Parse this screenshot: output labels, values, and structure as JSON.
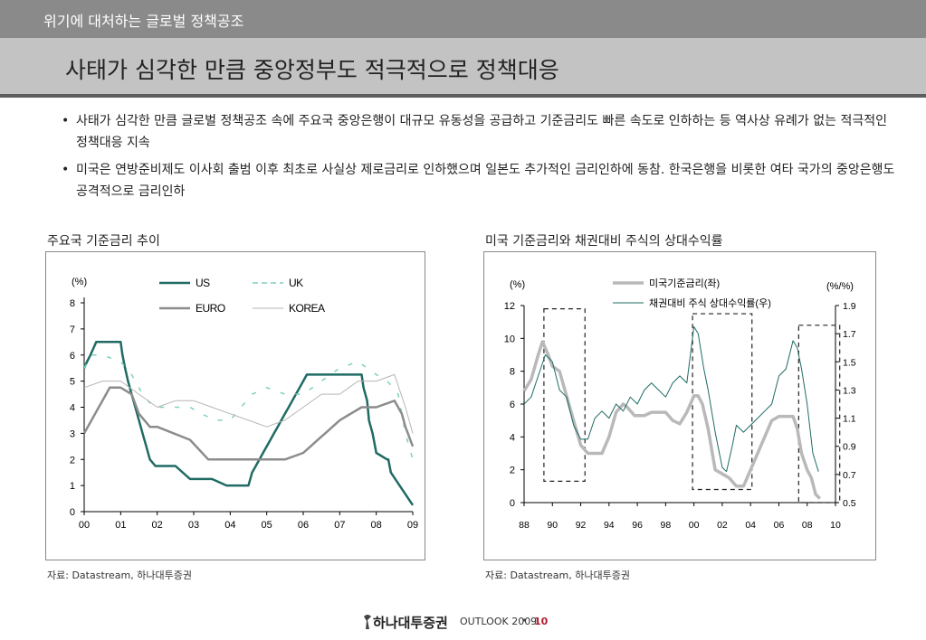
{
  "header": {
    "section_title": "위기에 대처하는 글로벌 정책공조",
    "page_title": "사태가 심각한 만큼 중앙정부도 적극적으로 정책대응"
  },
  "bullets": [
    "사태가 심각한 만큼 글로벌 정책공조 속에 주요국 중앙은행이 대규모 유동성을 공급하고 기준금리도 빠른 속도로 인하하는 등 역사상 유례가 없는 적극적인 정책대응 지속",
    "미국은 연방준비제도 이사회 출범 이후 최초로 사실상 제로금리로 인하했으며 일본도 추가적인 금리인하에 동참. 한국은행을 비롯한 여타 국가의 중앙은행도 공격적으로 금리인하"
  ],
  "bullet_marker": "•",
  "sources": {
    "left": "자료: Datastream, 하나대투증권",
    "right": "자료: Datastream, 하나대투증권"
  },
  "footer": {
    "brand": "하나대투증권",
    "outlook": "OUTLOOK 2009",
    "separator": "•",
    "page_number": "10"
  },
  "chart_data": [
    {
      "type": "line",
      "title": "주요국 기준금리 추이",
      "ylabel": "(%)",
      "ylim": [
        0,
        8
      ],
      "yticks": [
        "0",
        "1",
        "2",
        "3",
        "4",
        "5",
        "6",
        "7",
        "8"
      ],
      "xlim": [
        0,
        9
      ],
      "xticks": [
        "00",
        "01",
        "02",
        "03",
        "04",
        "05",
        "06",
        "07",
        "08",
        "09"
      ],
      "legend_position": "top",
      "series": [
        {
          "name": "US",
          "color": "#1f6b63",
          "style": "solid",
          "width": 2.5,
          "x": [
            0,
            0.08,
            0.17,
            0.33,
            0.5,
            1.0,
            1.05,
            1.12,
            1.2,
            1.3,
            1.4,
            1.5,
            1.6,
            1.7,
            1.8,
            1.95,
            2.5,
            2.9,
            3.5,
            3.9,
            4.5,
            4.55,
            4.6,
            4.7,
            4.8,
            4.9,
            5.0,
            5.1,
            5.2,
            5.3,
            5.4,
            5.5,
            5.6,
            5.7,
            5.8,
            5.9,
            6.0,
            6.1,
            6.2,
            6.3,
            6.4,
            6.5,
            7.6,
            7.65,
            7.7,
            7.75,
            7.8,
            7.9,
            8.0,
            8.3,
            8.33,
            8.4,
            9.0
          ],
          "y": [
            5.5,
            5.75,
            6.0,
            6.5,
            6.5,
            6.5,
            6.0,
            5.5,
            5.0,
            4.5,
            4.0,
            3.5,
            3.0,
            2.5,
            2.0,
            1.75,
            1.75,
            1.25,
            1.25,
            1.0,
            1.0,
            1.25,
            1.5,
            1.75,
            2.0,
            2.25,
            2.5,
            2.75,
            3.0,
            3.25,
            3.5,
            3.75,
            4.0,
            4.25,
            4.5,
            4.75,
            5.0,
            5.25,
            5.25,
            5.25,
            5.25,
            5.25,
            5.25,
            4.75,
            4.5,
            4.25,
            3.5,
            3.0,
            2.25,
            2.0,
            2.0,
            1.5,
            0.25
          ]
        },
        {
          "name": "UK",
          "color": "#7fcfc0",
          "style": "dashed",
          "width": 1.5,
          "x": [
            0,
            0.2,
            0.5,
            1.0,
            1.3,
            1.6,
            1.9,
            2.5,
            2.9,
            3.2,
            3.6,
            4.0,
            4.3,
            4.6,
            5.0,
            5.5,
            6.0,
            6.5,
            7.0,
            7.5,
            8.0,
            8.3,
            8.6,
            8.8,
            9.0
          ],
          "y": [
            5.5,
            6.0,
            6.0,
            5.75,
            5.25,
            4.5,
            4.0,
            4.0,
            4.0,
            3.75,
            3.5,
            3.5,
            4.0,
            4.5,
            4.75,
            4.5,
            4.5,
            5.0,
            5.5,
            5.75,
            5.25,
            5.0,
            4.5,
            3.0,
            2.0
          ]
        },
        {
          "name": "EURO",
          "color": "#8c8c8c",
          "style": "solid",
          "width": 2.5,
          "x": [
            0,
            0.1,
            0.2,
            0.3,
            0.4,
            0.5,
            0.6,
            0.7,
            0.8,
            1.0,
            1.3,
            1.5,
            1.8,
            2.0,
            2.9,
            3.4,
            5.5,
            6.0,
            6.2,
            6.4,
            6.6,
            6.8,
            7.0,
            7.3,
            7.6,
            7.8,
            8.0,
            8.5,
            8.7,
            8.8,
            9.0
          ],
          "y": [
            3.0,
            3.25,
            3.5,
            3.75,
            4.0,
            4.25,
            4.5,
            4.75,
            4.75,
            4.75,
            4.5,
            3.75,
            3.25,
            3.25,
            2.75,
            2.0,
            2.0,
            2.25,
            2.5,
            2.75,
            3.0,
            3.25,
            3.5,
            3.75,
            4.0,
            4.0,
            4.0,
            4.25,
            3.75,
            3.25,
            2.5
          ]
        },
        {
          "name": "KOREA",
          "color": "#b5b5b5",
          "style": "solid",
          "width": 1,
          "x": [
            0,
            0.5,
            1.0,
            1.5,
            2.0,
            2.5,
            3.0,
            3.5,
            4.0,
            4.5,
            5.0,
            5.5,
            6.0,
            6.5,
            7.0,
            7.5,
            8.0,
            8.5,
            8.8,
            9.0
          ],
          "y": [
            4.75,
            5.0,
            5.0,
            4.5,
            4.0,
            4.25,
            4.25,
            4.0,
            3.75,
            3.5,
            3.25,
            3.5,
            4.0,
            4.5,
            4.5,
            5.0,
            5.0,
            5.25,
            4.0,
            3.0
          ]
        }
      ]
    },
    {
      "type": "line",
      "title": "미국 기준금리와 채권대비 주식의 상대수익률",
      "ylabel": "(%)",
      "ylabel_right": "(%/%)",
      "ylim": [
        0,
        12
      ],
      "yticks": [
        "0",
        "2",
        "4",
        "6",
        "8",
        "10",
        "12"
      ],
      "ylim_right": [
        0.5,
        1.9
      ],
      "yticks_right": [
        "0.5",
        "0.7",
        "0.9",
        "1.1",
        "1.3",
        "1.5",
        "1.7",
        "1.9"
      ],
      "xlim": [
        88,
        110
      ],
      "xticks": [
        "88",
        "90",
        "92",
        "94",
        "96",
        "98",
        "00",
        "02",
        "04",
        "06",
        "08",
        "10"
      ],
      "legend_position": "top",
      "series": [
        {
          "name": "미국기준금리(좌)",
          "axis": "left",
          "color": "#b9b9b9",
          "style": "solid",
          "width": 3.5,
          "x": [
            88,
            88.5,
            89.0,
            89.3,
            89.7,
            90.0,
            90.5,
            91.0,
            91.5,
            92.0,
            92.5,
            93.0,
            93.5,
            94.0,
            94.5,
            95.0,
            95.3,
            95.8,
            96.5,
            97.0,
            97.5,
            98.0,
            98.5,
            99.0,
            99.5,
            100.0,
            100.3,
            100.6,
            101.0,
            101.5,
            102.0,
            102.5,
            103.0,
            103.5,
            104.0,
            104.5,
            105.0,
            105.5,
            106.0,
            106.5,
            107.0,
            107.3,
            107.6,
            108.0,
            108.3,
            108.6,
            108.9
          ],
          "y": [
            6.8,
            7.5,
            9.0,
            9.8,
            9.0,
            8.3,
            8.0,
            6.5,
            5.0,
            3.5,
            3.0,
            3.0,
            3.0,
            4.0,
            5.5,
            6.0,
            5.8,
            5.3,
            5.3,
            5.5,
            5.5,
            5.5,
            5.0,
            4.8,
            5.5,
            6.5,
            6.5,
            6.0,
            4.5,
            2.0,
            1.75,
            1.5,
            1.0,
            1.0,
            2.0,
            3.0,
            4.0,
            5.0,
            5.25,
            5.25,
            5.25,
            4.5,
            3.0,
            2.0,
            1.5,
            0.5,
            0.25
          ]
        },
        {
          "name": "채권대비 주식 상대수익률(우)",
          "axis": "right",
          "color": "#1f6b63",
          "style": "solid",
          "width": 1,
          "x": [
            88,
            88.5,
            89.0,
            89.5,
            90.0,
            90.5,
            91.0,
            91.5,
            92.0,
            92.5,
            93.0,
            93.5,
            94.0,
            94.5,
            95.0,
            95.5,
            96.0,
            96.5,
            97.0,
            97.5,
            98.0,
            98.5,
            99.0,
            99.5,
            100.0,
            100.3,
            100.7,
            101.0,
            101.5,
            102.0,
            102.3,
            102.7,
            103.0,
            103.5,
            104.0,
            104.5,
            105.0,
            105.5,
            106.0,
            106.5,
            107.0,
            107.3,
            107.6,
            108.0,
            108.4,
            108.8
          ],
          "y": [
            1.2,
            1.25,
            1.4,
            1.55,
            1.5,
            1.3,
            1.25,
            1.05,
            0.95,
            0.95,
            1.1,
            1.15,
            1.1,
            1.2,
            1.15,
            1.25,
            1.2,
            1.3,
            1.35,
            1.3,
            1.25,
            1.35,
            1.4,
            1.35,
            1.75,
            1.7,
            1.45,
            1.3,
            1.0,
            0.75,
            0.72,
            0.9,
            1.05,
            1.0,
            1.05,
            1.1,
            1.15,
            1.2,
            1.4,
            1.45,
            1.65,
            1.6,
            1.45,
            1.2,
            0.85,
            0.72
          ]
        }
      ],
      "annotations": [
        {
          "type": "dashed-box",
          "x": [
            89.4,
            92.3
          ],
          "ylim": [
            1.3,
            11.8
          ]
        },
        {
          "type": "dashed-box",
          "x": [
            99.9,
            104.1
          ],
          "ylim": [
            0.8,
            11.5
          ]
        },
        {
          "type": "dashed-box",
          "x": [
            107.4,
            110.3
          ],
          "ylim": [
            0,
            10.8
          ]
        }
      ]
    }
  ]
}
